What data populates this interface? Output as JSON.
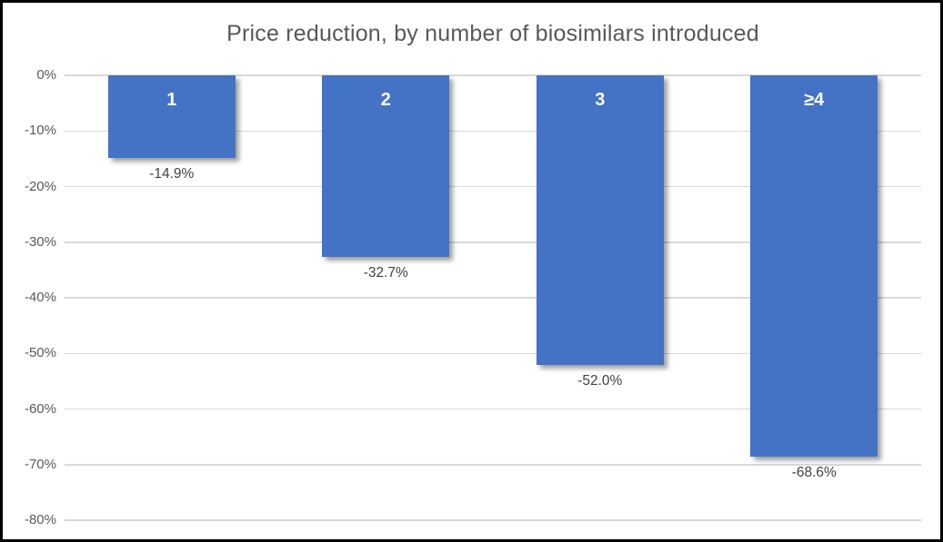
{
  "title": "Price reduction, by number of biosimilars introduced",
  "chart_data": {
    "type": "bar",
    "title": "Price reduction, by number of biosimilars introduced",
    "categories": [
      "1",
      "2",
      "3",
      "≥4"
    ],
    "values": [
      -14.9,
      -32.7,
      -52.0,
      -68.6
    ],
    "value_labels": [
      "-14.9%",
      "-32.7%",
      "-52.0%",
      "-68.6%"
    ],
    "xlabel": "",
    "ylabel": "",
    "ylim": [
      -80,
      0
    ],
    "ytick_step": 10,
    "ytick_labels": [
      "0%",
      "-10%",
      "-20%",
      "-30%",
      "-40%",
      "-50%",
      "-60%",
      "-70%",
      "-80%"
    ],
    "grid": true,
    "legend": false,
    "bar_color": "#4472C4",
    "bar_category_label_color": "#FFFFFF",
    "value_label_color": "#404040",
    "axis_tick_label_color": "#595959",
    "title_color": "#595959",
    "gridline_color": "#D9D9D9",
    "background_color": "#FFFFFF",
    "frame_border_color": "#000000"
  }
}
